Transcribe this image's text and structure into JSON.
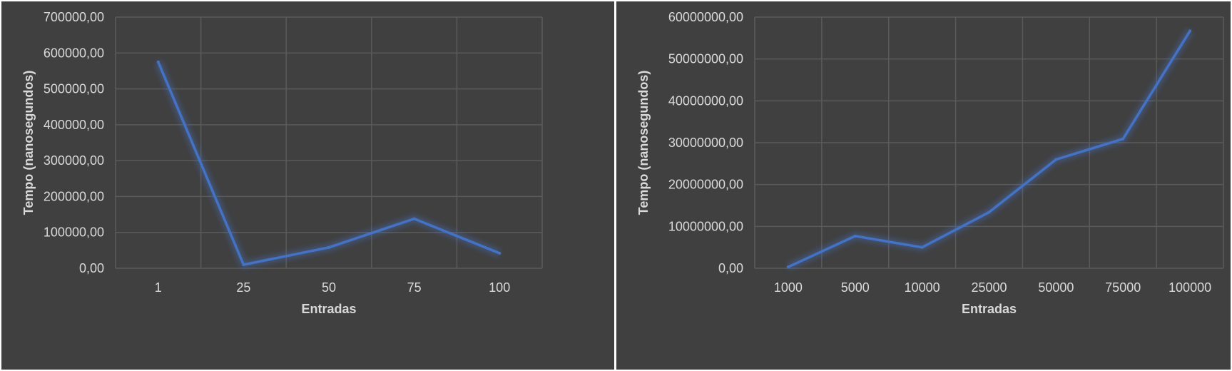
{
  "chart_data": [
    {
      "type": "line",
      "categories": [
        "1",
        "25",
        "50",
        "75",
        "100"
      ],
      "series": [
        {
          "values": [
            575000,
            10000,
            58000,
            138000,
            42000
          ]
        }
      ],
      "xlabel": "Entradas",
      "ylabel": "Tempo (nanosegundos)",
      "ylim": [
        0,
        700000
      ],
      "yticks": [
        "0,00",
        "100000,00",
        "200000,00",
        "300000,00",
        "400000,00",
        "500000,00",
        "600000,00",
        "700000,00"
      ],
      "grid": true,
      "colors": {
        "line": "#4472c4",
        "background": "#404040",
        "grid": "#5a5a5a",
        "text": "#d9d9d9"
      }
    },
    {
      "type": "line",
      "categories": [
        "1000",
        "5000",
        "10000",
        "25000",
        "50000",
        "75000",
        "100000"
      ],
      "series": [
        {
          "values": [
            300000,
            7700000,
            5000000,
            13400000,
            26000000,
            30900000,
            56700000
          ]
        }
      ],
      "xlabel": "Entradas",
      "ylabel": "Tempo (nanosegundos)",
      "ylim": [
        0,
        60000000
      ],
      "yticks": [
        "0,00",
        "10000000,00",
        "20000000,00",
        "30000000,00",
        "40000000,00",
        "50000000,00",
        "60000000,00"
      ],
      "grid": true,
      "colors": {
        "line": "#4472c4",
        "background": "#404040",
        "grid": "#5a5a5a",
        "text": "#d9d9d9"
      }
    }
  ]
}
